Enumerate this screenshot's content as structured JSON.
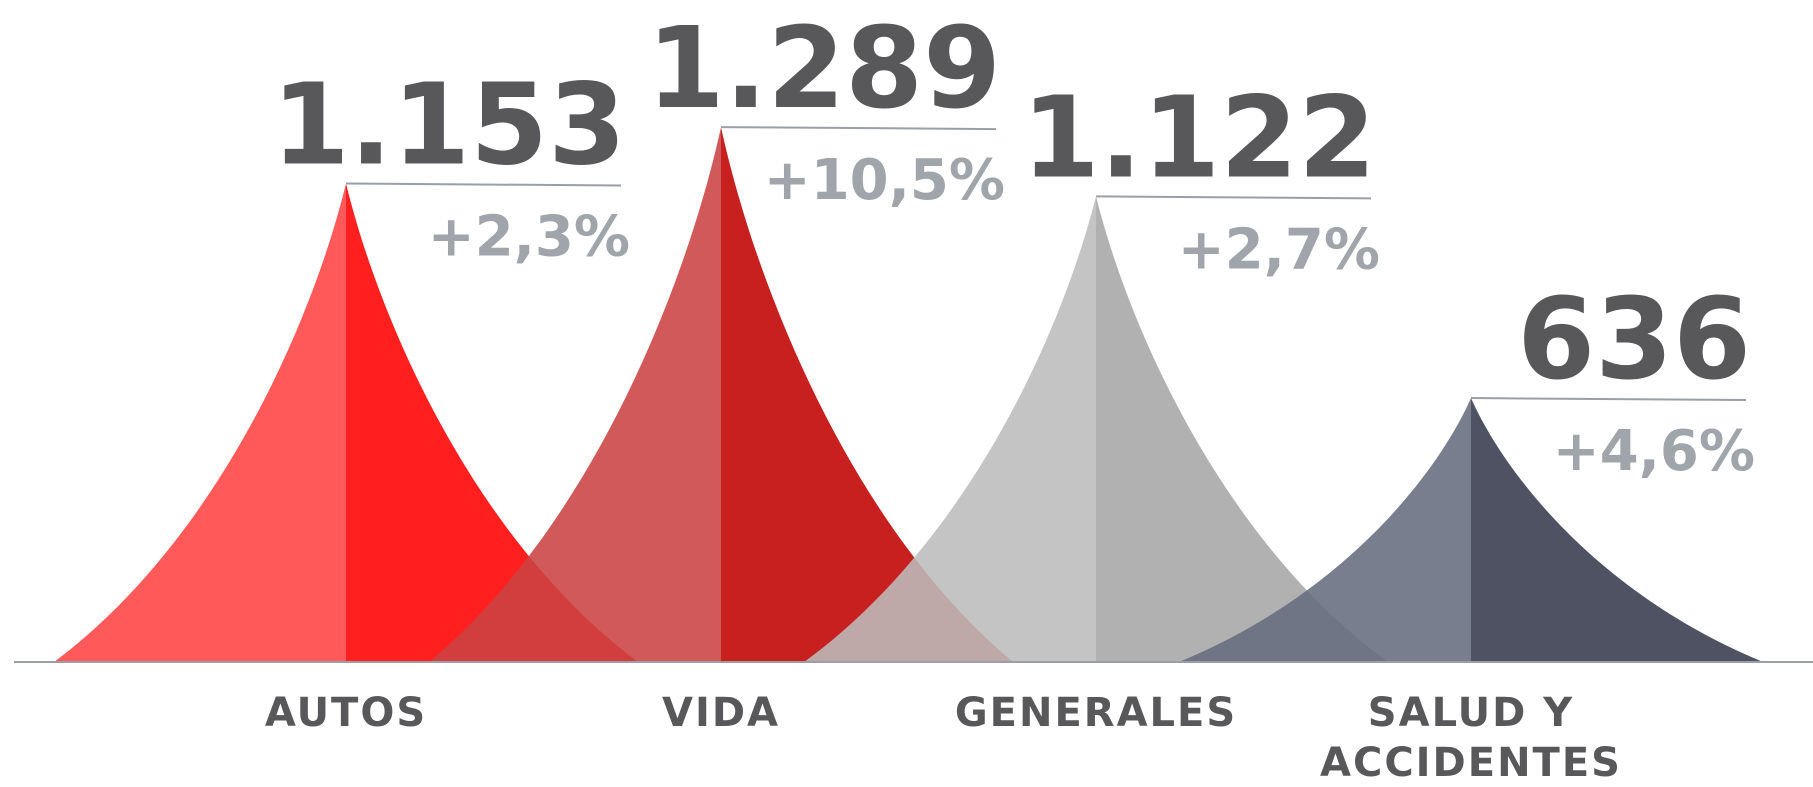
{
  "chart_data": {
    "type": "peaks",
    "categories": [
      "AUTOS",
      "VIDA",
      "GENERALES",
      "SALUD Y ACCIDENTES"
    ],
    "values": [
      1153,
      1289,
      1122,
      636
    ],
    "value_labels": [
      "1.153",
      "1.289",
      "1.122",
      "636"
    ],
    "change": {
      "values": [
        2.3,
        10.5,
        2.7,
        4.6
      ],
      "value_labels": [
        "+2,3%",
        "+10,5%",
        "+2,7%",
        "+4,6%"
      ]
    },
    "colors": [
      [
        "#ff4242",
        "#ff0000"
      ],
      [
        "#cc4242",
        "#c00000"
      ],
      [
        "#bcbcbc",
        "#a6a6a6"
      ],
      [
        "#676c7e",
        "#353a4d"
      ]
    ]
  }
}
